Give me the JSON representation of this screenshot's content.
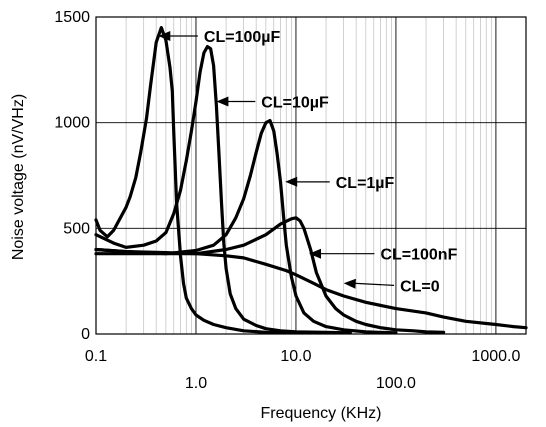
{
  "chart_data": {
    "type": "line",
    "xlabel": "Frequency (KHz)",
    "ylabel": "Noise voltage (nV/VHz)",
    "x_scale": "log",
    "xlim": [
      0.1,
      2000
    ],
    "ylim": [
      0,
      1500
    ],
    "grid": true,
    "x_ticks": [
      {
        "value": 0.1,
        "label": "0.1",
        "row": 0
      },
      {
        "value": 1,
        "label": "1.0",
        "row": 1
      },
      {
        "value": 10,
        "label": "10.0",
        "row": 0
      },
      {
        "value": 100,
        "label": "100.0",
        "row": 1
      },
      {
        "value": 1000,
        "label": "1000.0",
        "row": 0
      }
    ],
    "y_ticks": [
      {
        "value": 0,
        "label": "0"
      },
      {
        "value": 500,
        "label": "500"
      },
      {
        "value": 1000,
        "label": "1000"
      },
      {
        "value": 1500,
        "label": "1500"
      }
    ],
    "series": [
      {
        "name": "CL=100µF",
        "x": [
          0.1,
          0.11,
          0.13,
          0.15,
          0.18,
          0.2,
          0.22,
          0.25,
          0.28,
          0.32,
          0.35,
          0.4,
          0.45,
          0.5,
          0.55,
          0.58,
          0.6,
          0.64,
          0.7,
          0.75,
          0.8,
          0.9,
          1.0,
          1.2,
          1.5,
          2.0,
          3.0,
          5.0,
          10.0
        ],
        "y": [
          540,
          490,
          460,
          490,
          560,
          600,
          650,
          740,
          860,
          1020,
          1170,
          1380,
          1450,
          1390,
          1260,
          1150,
          950,
          620,
          370,
          240,
          170,
          120,
          90,
          65,
          45,
          30,
          15,
          8,
          5
        ],
        "label_x": 0.42,
        "label_y": 1410,
        "anno_x": 1.2,
        "anno_y": 1410,
        "anno_label": "CL=100µF"
      },
      {
        "name": "CL=10µF",
        "x": [
          0.1,
          0.15,
          0.2,
          0.3,
          0.4,
          0.5,
          0.6,
          0.7,
          0.8,
          0.9,
          1.0,
          1.1,
          1.2,
          1.3,
          1.4,
          1.5,
          1.6,
          1.7,
          1.8,
          1.9,
          2.0,
          2.2,
          2.5,
          3.0,
          4.0,
          5.0,
          7.0,
          10.0,
          20.0,
          35.0
        ],
        "y": [
          470,
          430,
          410,
          420,
          440,
          480,
          570,
          680,
          820,
          960,
          1100,
          1240,
          1330,
          1360,
          1350,
          1270,
          1080,
          850,
          620,
          430,
          310,
          190,
          120,
          70,
          40,
          25,
          15,
          10,
          8,
          5
        ],
        "label_x": 1.6,
        "label_y": 1100,
        "anno_x": 4.5,
        "anno_y": 1100,
        "anno_label": "CL=10µF"
      },
      {
        "name": "CL=1µF",
        "x": [
          0.1,
          0.2,
          0.5,
          1.0,
          1.5,
          2.0,
          2.5,
          3.0,
          3.5,
          4.0,
          4.5,
          5.0,
          5.5,
          6.0,
          6.5,
          7.0,
          7.5,
          8.0,
          9.0,
          10.0,
          12.0,
          15.0,
          20.0,
          30.0,
          50.0,
          100.0
        ],
        "y": [
          400,
          390,
          380,
          395,
          420,
          470,
          550,
          640,
          750,
          860,
          950,
          1000,
          1010,
          960,
          850,
          720,
          560,
          420,
          270,
          180,
          100,
          60,
          35,
          20,
          10,
          5
        ],
        "label_x": 7.8,
        "label_y": 720,
        "anno_x": 25.0,
        "anno_y": 720,
        "anno_label": "CL=1µF"
      },
      {
        "name": "CL=100nF",
        "x": [
          0.1,
          0.2,
          0.5,
          1.0,
          2.0,
          3.0,
          5.0,
          7.0,
          9.0,
          10.0,
          11.0,
          12.0,
          14.0,
          16.0,
          20.0,
          25.0,
          30.0,
          40.0,
          50.0,
          70.0,
          100.0,
          150.0,
          200.0,
          300.0
        ],
        "y": [
          380,
          380,
          380,
          380,
          400,
          420,
          470,
          520,
          545,
          550,
          535,
          500,
          400,
          290,
          180,
          120,
          90,
          60,
          45,
          30,
          20,
          15,
          10,
          8
        ],
        "label_x": 13.5,
        "label_y": 380,
        "anno_x": 70.0,
        "anno_y": 380,
        "anno_label": "CL=100nF"
      },
      {
        "name": "CL=0",
        "x": [
          0.1,
          0.2,
          0.5,
          1.0,
          2.0,
          3.0,
          5.0,
          8.0,
          10.0,
          15.0,
          20.0,
          30.0,
          50.0,
          100.0,
          200.0,
          300.0,
          500.0,
          1000.0,
          1500.0,
          2000.0
        ],
        "y": [
          400,
          390,
          385,
          380,
          370,
          360,
          330,
          300,
          280,
          240,
          210,
          180,
          150,
          120,
          100,
          80,
          60,
          45,
          35,
          30
        ],
        "label_x": 30.0,
        "label_y": 240,
        "anno_x": 110.0,
        "anno_y": 230,
        "anno_label": "CL=0"
      }
    ]
  }
}
